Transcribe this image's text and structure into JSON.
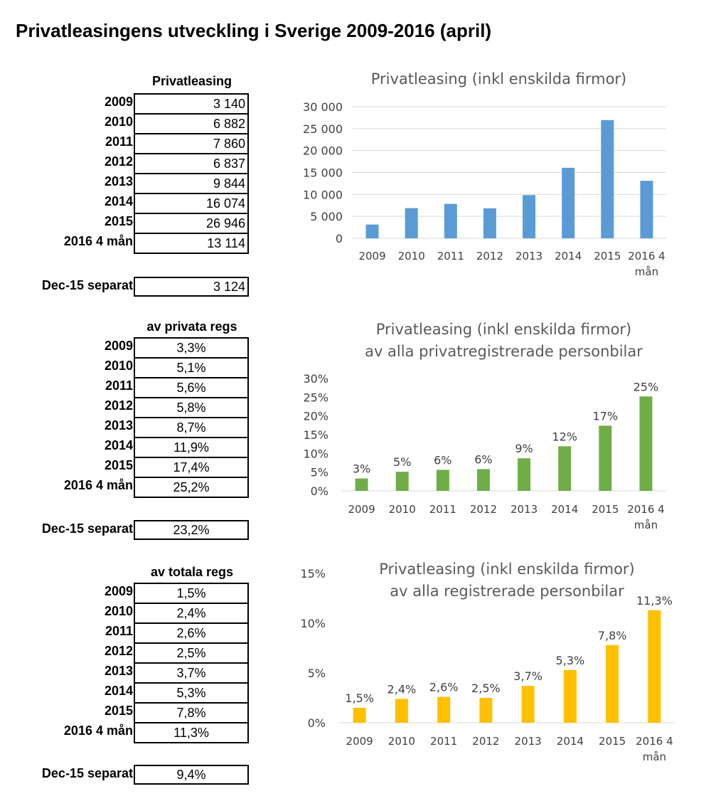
{
  "page_title": "Privatleasingens utveckling i Sverige 2009-2016 (april)",
  "tables": [
    {
      "header": "Privatleasing",
      "rows": [
        {
          "label": "2009",
          "value": "3 140"
        },
        {
          "label": "2010",
          "value": "6 882"
        },
        {
          "label": "2011",
          "value": "7 860"
        },
        {
          "label": "2012",
          "value": "6 837"
        },
        {
          "label": "2013",
          "value": "9 844"
        },
        {
          "label": "2014",
          "value": "16 074"
        },
        {
          "label": "2015",
          "value": "26 946"
        },
        {
          "label": "2016 4 mån",
          "value": "13 114"
        }
      ],
      "separate": {
        "label": "Dec-15 separat",
        "value": "3 124"
      }
    },
    {
      "header": "av privata regs",
      "rows": [
        {
          "label": "2009",
          "value": "3,3%"
        },
        {
          "label": "2010",
          "value": "5,1%"
        },
        {
          "label": "2011",
          "value": "5,6%"
        },
        {
          "label": "2012",
          "value": "5,8%"
        },
        {
          "label": "2013",
          "value": "8,7%"
        },
        {
          "label": "2014",
          "value": "11,9%"
        },
        {
          "label": "2015",
          "value": "17,4%"
        },
        {
          "label": "2016 4 mån",
          "value": "25,2%"
        }
      ],
      "separate": {
        "label": "Dec-15 separat",
        "value": "23,2%"
      }
    },
    {
      "header": "av totala regs",
      "rows": [
        {
          "label": "2009",
          "value": "1,5%"
        },
        {
          "label": "2010",
          "value": "2,4%"
        },
        {
          "label": "2011",
          "value": "2,6%"
        },
        {
          "label": "2012",
          "value": "2,5%"
        },
        {
          "label": "2013",
          "value": "3,7%"
        },
        {
          "label": "2014",
          "value": "5,3%"
        },
        {
          "label": "2015",
          "value": "7,8%"
        },
        {
          "label": "2016 4 mån",
          "value": "11,3%"
        }
      ],
      "separate": {
        "label": "Dec-15 separat",
        "value": "9,4%"
      }
    }
  ],
  "chart_data": [
    {
      "type": "bar",
      "title": "Privatleasing (inkl enskilda firmor)",
      "categories": [
        "2009",
        "2010",
        "2011",
        "2012",
        "2013",
        "2014",
        "2015",
        "2016 4 mån"
      ],
      "values": [
        3140,
        6882,
        7860,
        6837,
        9844,
        16074,
        26946,
        13114
      ],
      "ylim": [
        0,
        30000
      ],
      "yticks": [
        "0",
        "5 000",
        "10 000",
        "15 000",
        "20 000",
        "25 000",
        "30 000"
      ],
      "data_labels": [],
      "grid": true,
      "color": "#5b9bd5"
    },
    {
      "type": "bar",
      "title": "Privatleasing (inkl enskilda firmor) av alla privatregistrerade personbilar",
      "categories": [
        "2009",
        "2010",
        "2011",
        "2012",
        "2013",
        "2014",
        "2015",
        "2016 4 mån"
      ],
      "values": [
        3.3,
        5.1,
        5.6,
        5.8,
        8.7,
        11.9,
        17.4,
        25.2
      ],
      "ylim": [
        0,
        30
      ],
      "yticks": [
        "0%",
        "5%",
        "10%",
        "15%",
        "20%",
        "25%",
        "30%"
      ],
      "data_labels": [
        "3%",
        "5%",
        "6%",
        "6%",
        "9%",
        "12%",
        "17%",
        "25%"
      ],
      "grid": false,
      "color": "#70ad47"
    },
    {
      "type": "bar",
      "title": "Privatleasing (inkl enskilda firmor) av alla registrerade personbilar",
      "categories": [
        "2009",
        "2010",
        "2011",
        "2012",
        "2013",
        "2014",
        "2015",
        "2016 4 mån"
      ],
      "values": [
        1.5,
        2.4,
        2.6,
        2.5,
        3.7,
        5.3,
        7.8,
        11.3
      ],
      "ylim": [
        0,
        15
      ],
      "yticks": [
        "0%",
        "5%",
        "10%",
        "15%"
      ],
      "data_labels": [
        "1,5%",
        "2,4%",
        "2,6%",
        "2,5%",
        "3,7%",
        "5,3%",
        "7,8%",
        "11,3%"
      ],
      "grid": false,
      "color": "#ffc000"
    }
  ]
}
